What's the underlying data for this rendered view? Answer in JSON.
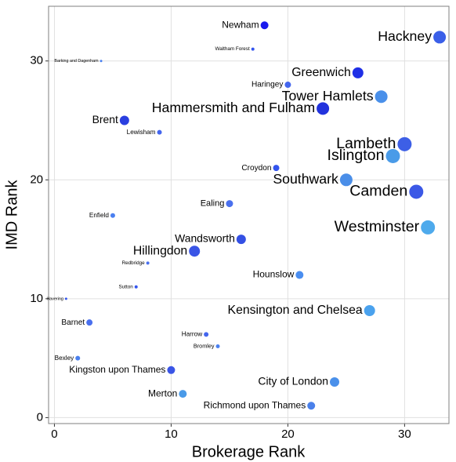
{
  "chart_data": {
    "type": "scatter",
    "x_label": "Brokerage Rank",
    "y_label": "IMD Rank",
    "xlim": [
      -0.5,
      33.8
    ],
    "ylim": [
      -0.5,
      34.6
    ],
    "xticks": [
      0,
      10,
      20,
      30
    ],
    "yticks": [
      0,
      10,
      20,
      30
    ],
    "grid": true,
    "labels": [
      "Newham",
      "Waltham Forest",
      "Barking and Dagenham",
      "Hackney",
      "Greenwich",
      "Haringey",
      "Tower Hamlets",
      "Hammersmith and Fulham",
      "Brent",
      "Lewisham",
      "Lambeth",
      "Islington",
      "Croydon",
      "Southwark",
      "Camden",
      "Ealing",
      "Enfield",
      "Westminster",
      "Wandsworth",
      "Hillingdon",
      "Redbridge",
      "Hounslow",
      "Sutton",
      "Havering",
      "Kensington and Chelsea",
      "Barnet",
      "Harrow",
      "Bromley",
      "Bexley",
      "Kingston upon Thames",
      "City of London",
      "Merton",
      "Richmond upon Thames"
    ],
    "x": [
      18,
      17,
      4,
      33,
      26,
      20,
      28,
      23,
      6,
      9,
      30,
      29,
      19,
      25,
      31,
      15,
      5,
      32,
      16,
      12,
      8,
      21,
      7,
      1,
      27,
      3,
      13,
      14,
      2,
      10,
      24,
      11,
      22
    ],
    "values": [
      33,
      31,
      30,
      32,
      29,
      28,
      27,
      26,
      25,
      24,
      23,
      22,
      21,
      20,
      19,
      18,
      17,
      16,
      15,
      14,
      13,
      12,
      11,
      10,
      9,
      8,
      7,
      6,
      5,
      4,
      3,
      2,
      1
    ],
    "sizes": [
      5,
      2,
      1.5,
      8,
      7,
      4,
      8,
      8,
      6,
      3,
      9,
      9,
      4,
      8,
      9,
      4.5,
      3,
      9,
      6,
      7,
      2,
      5,
      2,
      1.5,
      7,
      4,
      3,
      2.5,
      3,
      5,
      6,
      5,
      5
    ],
    "colors": [
      "#1a1aee",
      "#3355ee",
      "#4a80f0",
      "#3b5fe8",
      "#1f2fe6",
      "#4466ee",
      "#4a90ea",
      "#2233dd",
      "#2a3fe0",
      "#4466ee",
      "#3d5fe6",
      "#4a9be8",
      "#3355ee",
      "#4a8ee8",
      "#3b58e6",
      "#4a70ee",
      "#4a7ff0",
      "#4eaaec",
      "#3450e4",
      "#3a55e6",
      "#4a70ee",
      "#4a8ef0",
      "#3355ee",
      "#3355ee",
      "#4aa2ee",
      "#4a70ee",
      "#4466ee",
      "#4a80f0",
      "#4a80ee",
      "#3a55e6",
      "#4a90ea",
      "#4a9ae8",
      "#4a80ea"
    ]
  }
}
